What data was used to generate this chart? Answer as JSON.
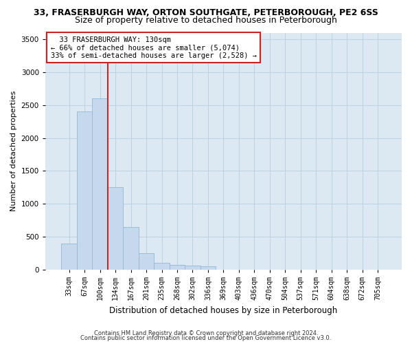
{
  "title_line1": "33, FRASERBURGH WAY, ORTON SOUTHGATE, PETERBOROUGH, PE2 6SS",
  "title_line2": "Size of property relative to detached houses in Peterborough",
  "xlabel": "Distribution of detached houses by size in Peterborough",
  "ylabel": "Number of detached properties",
  "footer_line1": "Contains HM Land Registry data © Crown copyright and database right 2024.",
  "footer_line2": "Contains public sector information licensed under the Open Government Licence v3.0.",
  "categories": [
    "33sqm",
    "67sqm",
    "100sqm",
    "134sqm",
    "167sqm",
    "201sqm",
    "235sqm",
    "268sqm",
    "302sqm",
    "336sqm",
    "369sqm",
    "403sqm",
    "436sqm",
    "470sqm",
    "504sqm",
    "537sqm",
    "571sqm",
    "604sqm",
    "638sqm",
    "672sqm",
    "705sqm"
  ],
  "values": [
    400,
    2400,
    2600,
    1250,
    650,
    250,
    100,
    75,
    60,
    50,
    0,
    0,
    0,
    0,
    0,
    0,
    0,
    0,
    0,
    0,
    0
  ],
  "bar_color": "#c5d8ec",
  "bar_edge_color": "#93b8d8",
  "highlight_color": "#cc2222",
  "highlight_index": 3,
  "annotation_line1": "  33 FRASERBURGH WAY: 130sqm",
  "annotation_line2": "← 66% of detached houses are smaller (5,074)",
  "annotation_line3": "33% of semi-detached houses are larger (2,528) →",
  "annotation_box_color": "#ffffff",
  "annotation_box_edge": "#cc2222",
  "ylim": [
    0,
    3600
  ],
  "yticks": [
    0,
    500,
    1000,
    1500,
    2000,
    2500,
    3000,
    3500
  ],
  "background_color": "#ffffff",
  "plot_bg_color": "#dce8f2",
  "grid_color": "#b8cfe0",
  "title1_fontsize": 9,
  "title2_fontsize": 9,
  "tick_fontsize": 7,
  "ylabel_fontsize": 8,
  "xlabel_fontsize": 8.5,
  "annotation_fontsize": 7.5,
  "footer_fontsize": 6
}
